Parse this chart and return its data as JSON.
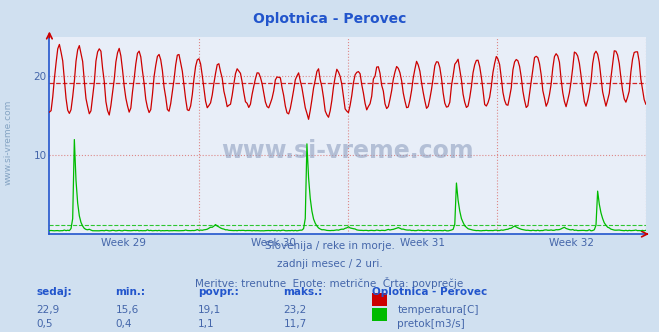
{
  "title": "Oplotnica - Perovec",
  "title_color": "#2255cc",
  "bg_color": "#d0e0f0",
  "plot_bg_color": "#e8eef8",
  "x_tick_labels": [
    "Week 29",
    "Week 30",
    "Week 31",
    "Week 32"
  ],
  "y_ticks": [
    0,
    10,
    20
  ],
  "y_max": 25,
  "y_min": 0,
  "temp_color": "#cc0000",
  "flow_color": "#00bb00",
  "axis_color": "#2255cc",
  "temp_avg": 19.1,
  "flow_avg": 1.1,
  "temp_min": 15.6,
  "temp_max": 23.2,
  "flow_min": 0.4,
  "flow_max": 11.7,
  "temp_current": 22.9,
  "flow_current": 0.5,
  "subtitle1": "Slovenija / reke in morje.",
  "subtitle2": "zadnji mesec / 2 uri.",
  "subtitle3": "Meritve: trenutne  Enote: metrične  Črta: povprečje",
  "subtitle_color": "#4466aa",
  "n_points": 360,
  "watermark": "www.si-vreme.com",
  "label_header_color": "#2255cc",
  "label_value_color": "#4466aa"
}
